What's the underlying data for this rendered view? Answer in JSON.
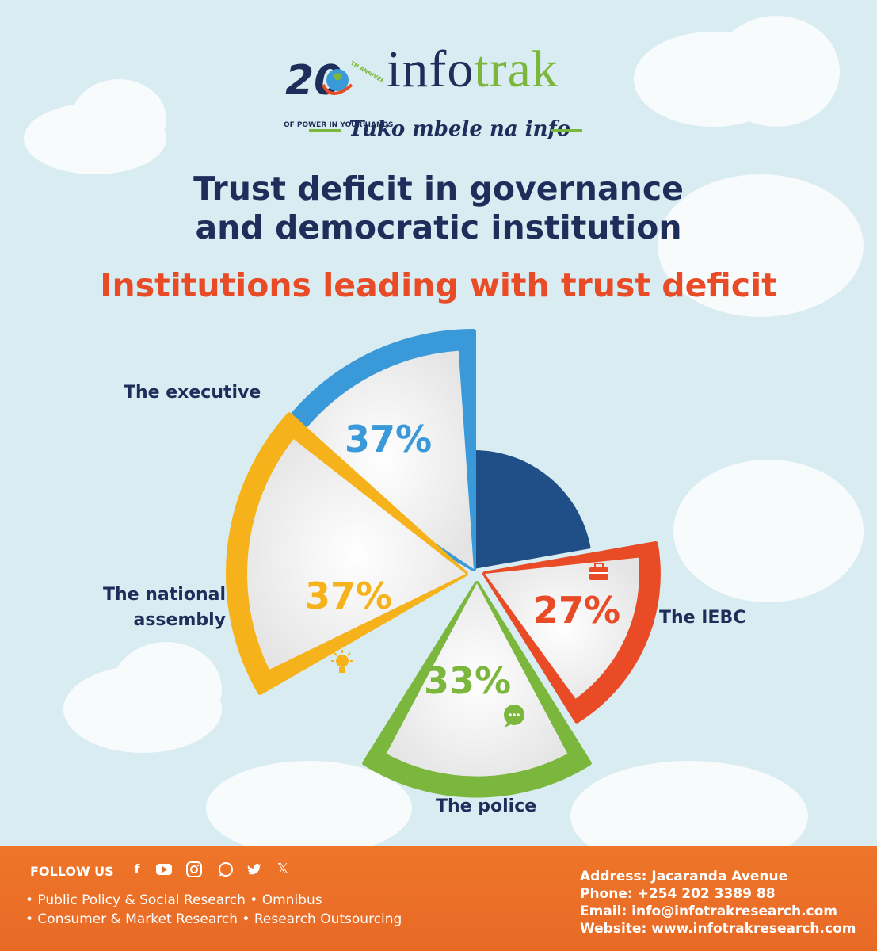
{
  "header": {
    "anniversary_number": "20",
    "anniversary_text": "TH ANNIVERSARY",
    "anniversary_subtitle": "OF POWER IN YOUR HANDS",
    "brand_part1": "info",
    "brand_part2": "trak",
    "tagline": "Tuko mbele na info"
  },
  "title_line1": "Trust deficit in governance",
  "title_line2": "and democratic institution",
  "subtitle": "Institutions leading with trust deficit",
  "chart_data": {
    "type": "pie",
    "title": "Institutions leading with trust deficit",
    "categories": [
      "The executive",
      "The national assembly",
      "The police",
      "The IEBC"
    ],
    "values": [
      37,
      37,
      33,
      27
    ],
    "value_labels": [
      "37%",
      "37%",
      "33%",
      "27%"
    ],
    "colors": [
      "#3a9ad9",
      "#f6b21a",
      "#7ab73c",
      "#e84b25"
    ],
    "icons": [
      "trophy-icon",
      "lightbulb-icon",
      "chat-bubble-icon",
      "briefcase-icon"
    ]
  },
  "labels": {
    "executive": "The executive",
    "assembly_line1": "The national",
    "assembly_line2": "assembly",
    "police": "The police",
    "iebc": "The IEBC"
  },
  "footer": {
    "follow_label": "FOLLOW US",
    "social_icons": [
      "facebook-icon",
      "youtube-icon",
      "instagram-icon",
      "whatsapp-icon",
      "twitter-icon",
      "x-icon"
    ],
    "services_line1": "• Public Policy & Social Research • Omnibus",
    "services_line2": "• Consumer & Market Research • Research Outsourcing",
    "address": "Address: Jacaranda Avenue",
    "phone": "Phone: +254 202 3389 88",
    "email": "Email: info@infotrakresearch.com",
    "website": "Website: www.infotrakresearch.com"
  }
}
